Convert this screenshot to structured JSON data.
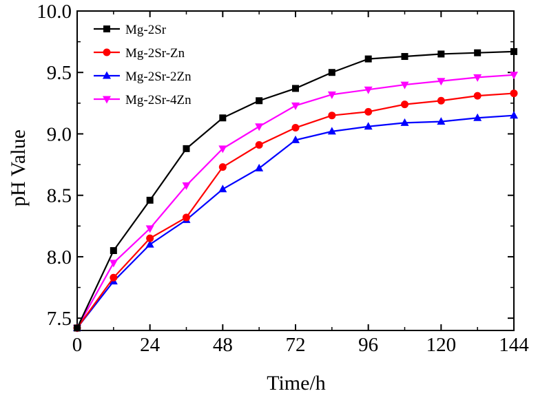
{
  "chart_data": {
    "type": "line",
    "xlabel": "Time/h",
    "ylabel": "pH Value",
    "xlim": [
      0,
      144
    ],
    "ylim": [
      7.4,
      10.0
    ],
    "x_ticks": [
      0,
      24,
      48,
      72,
      96,
      120,
      144
    ],
    "x_tick_labels": [
      "0",
      "24",
      "48",
      "72",
      "96",
      "120",
      "144"
    ],
    "y_ticks": [
      7.5,
      8.0,
      8.5,
      9.0,
      9.5,
      10.0
    ],
    "y_tick_labels": [
      "7.5",
      "8.0",
      "8.5",
      "9.0",
      "9.5",
      "10.0"
    ],
    "grid": false,
    "legend_position": "top-left",
    "x": [
      0,
      12,
      24,
      36,
      48,
      60,
      72,
      84,
      96,
      108,
      120,
      132,
      144
    ],
    "series": [
      {
        "name": "Mg-2Sr",
        "color": "#000000",
        "marker": "square",
        "values": [
          7.42,
          8.05,
          8.46,
          8.88,
          9.13,
          9.27,
          9.37,
          9.5,
          9.61,
          9.63,
          9.65,
          9.66,
          9.67
        ]
      },
      {
        "name": "Mg-2Sr-Zn",
        "color": "#ff0000",
        "marker": "circle",
        "values": [
          7.42,
          7.83,
          8.15,
          8.32,
          8.73,
          8.91,
          9.05,
          9.15,
          9.18,
          9.24,
          9.27,
          9.31,
          9.33
        ]
      },
      {
        "name": "Mg-2Sr-2Zn",
        "color": "#0000ff",
        "marker": "triangle-up",
        "values": [
          7.42,
          7.8,
          8.1,
          8.3,
          8.55,
          8.72,
          8.95,
          9.02,
          9.06,
          9.09,
          9.1,
          9.13,
          9.15
        ]
      },
      {
        "name": "Mg-2Sr-4Zn",
        "color": "#ff00ff",
        "marker": "triangle-down",
        "values": [
          7.42,
          7.95,
          8.23,
          8.58,
          8.88,
          9.06,
          9.23,
          9.32,
          9.36,
          9.4,
          9.43,
          9.46,
          9.48
        ]
      }
    ]
  }
}
